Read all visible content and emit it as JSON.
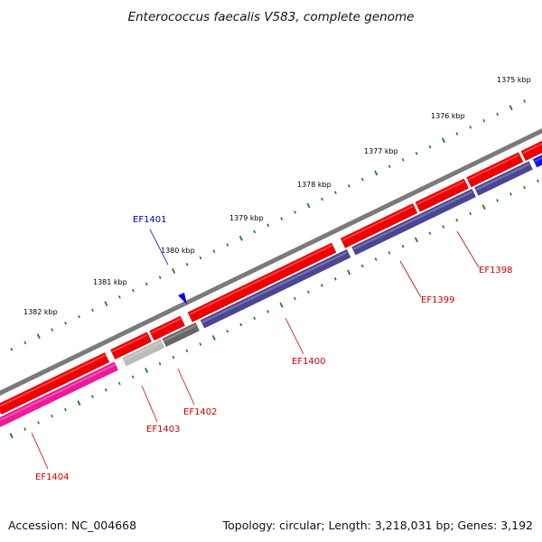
{
  "title": "Enterococcus faecalis V583, complete genome",
  "footer": {
    "accession": "Accession: NC_004668",
    "summary": "Topology: circular; Length: 3,218,031 bp; Genes: 3,192"
  },
  "colors": {
    "backbone": "#7a7a7a",
    "tick": "#1e7a1e",
    "label_red": "#cc0000",
    "label_blue": "#0000cc",
    "forward_gene": "#ee0000",
    "reverse_cds_purple": "#4b4694",
    "reverse_cds_magenta": "#ee1a9a",
    "reverse_grey_dark": "#666666",
    "reverse_grey_light": "#bbbbbb",
    "reverse_blue": "#0a14ee",
    "small_feature": "#0000ee"
  },
  "ruler": [
    {
      "label": "1375 kbp"
    },
    {
      "label": "1376 kbp"
    },
    {
      "label": "1377 kbp"
    },
    {
      "label": "1378 kbp"
    },
    {
      "label": "1379 kbp"
    },
    {
      "label": "1380 kbp"
    },
    {
      "label": "1381 kbp"
    },
    {
      "label": "1382 kbp"
    }
  ],
  "genes": [
    {
      "label": "EF1398"
    },
    {
      "label": "EF1399"
    },
    {
      "label": "EF1400"
    },
    {
      "label": "EF1401"
    },
    {
      "label": "EF1402"
    },
    {
      "label": "EF1403"
    },
    {
      "label": "EF1404"
    }
  ]
}
